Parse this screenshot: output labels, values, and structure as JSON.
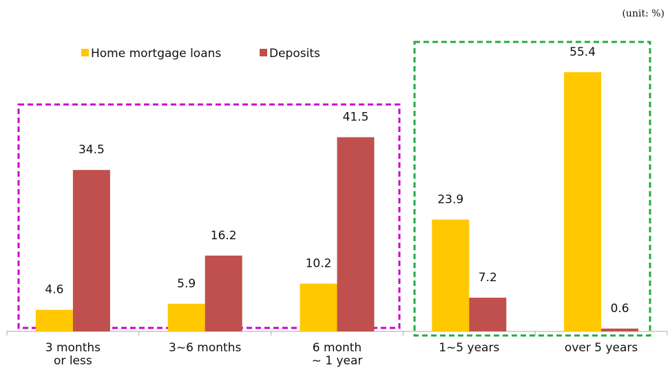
{
  "chart_data": {
    "type": "bar",
    "unit_note": "(unit: %)",
    "categories": [
      "3 months\nor less",
      "3~6 months",
      "6 month\n~ 1 year",
      "1~5 years",
      "over 5 years"
    ],
    "series": [
      {
        "name": "Home mortgage loans",
        "color": "#ffc800",
        "values": [
          4.6,
          5.9,
          10.2,
          23.9,
          55.4
        ]
      },
      {
        "name": "Deposits",
        "color": "#c0504d",
        "values": [
          34.5,
          16.2,
          41.5,
          7.2,
          0.6
        ]
      }
    ],
    "legend": "top-left"
  }
}
